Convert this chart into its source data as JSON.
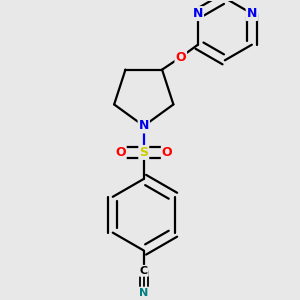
{
  "bg_color": "#e8e8e8",
  "bond_color": "#000000",
  "bond_width": 1.6,
  "atom_colors": {
    "N": "#0000ee",
    "O": "#ff0000",
    "S": "#cccc00",
    "CN": "#008080"
  }
}
